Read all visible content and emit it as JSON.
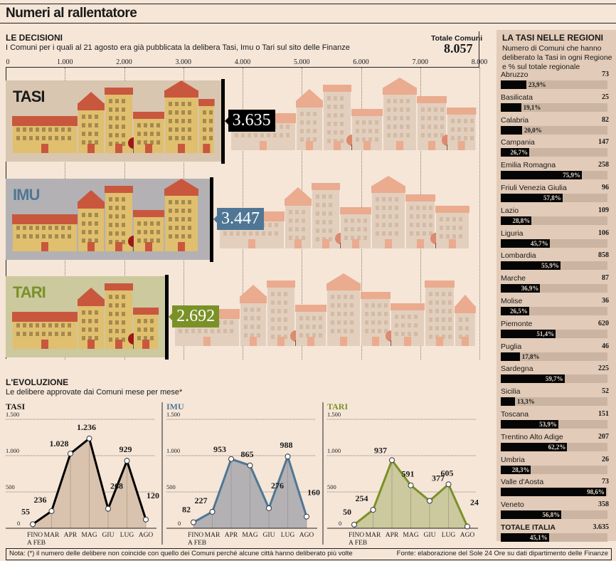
{
  "title": "Numeri al rallentatore",
  "decisions": {
    "heading": "LE DECISIONI",
    "subtitle": "I Comuni per i quali al 21 agosto era già pubblicata la delibera Tasi, Imu o Tari sul sito delle Finanze",
    "total_label": "Totale Comuni",
    "total_value": "8.057"
  },
  "evolution": {
    "heading": "L'EVOLUZIONE",
    "subtitle": "Le delibere approvate dai Comuni mese per mese*"
  },
  "sidebar": {
    "heading": "LA TASI NELLE REGIONI",
    "subtitle": "Numero di Comuni che hanno deliberato la Tasi in ogni Regione e % sul totale regionale",
    "regions": [
      {
        "name": "Abruzzo",
        "count": "73",
        "pct": 23.9,
        "pct_label": "23,9%"
      },
      {
        "name": "Basilicata",
        "count": "25",
        "pct": 19.1,
        "pct_label": "19,1%"
      },
      {
        "name": "Calabria",
        "count": "82",
        "pct": 20.0,
        "pct_label": "20,0%"
      },
      {
        "name": "Campania",
        "count": "147",
        "pct": 26.7,
        "pct_label": "26,7%"
      },
      {
        "name": "Emilia Romagna",
        "count": "258",
        "pct": 75.9,
        "pct_label": "75,9%"
      },
      {
        "name": "Friuli Venezia Giulia",
        "count": "96",
        "pct": 57.8,
        "pct_label": "57,8%"
      },
      {
        "name": "Lazio",
        "count": "109",
        "pct": 28.8,
        "pct_label": "28,8%"
      },
      {
        "name": "Liguria",
        "count": "106",
        "pct": 45.7,
        "pct_label": "45,7%"
      },
      {
        "name": "Lombardia",
        "count": "858",
        "pct": 55.9,
        "pct_label": "55,9%"
      },
      {
        "name": "Marche",
        "count": "87",
        "pct": 36.9,
        "pct_label": "36,9%"
      },
      {
        "name": "Molise",
        "count": "36",
        "pct": 26.5,
        "pct_label": "26,5%"
      },
      {
        "name": "Piemonte",
        "count": "620",
        "pct": 51.4,
        "pct_label": "51,4%"
      },
      {
        "name": "Puglia",
        "count": "46",
        "pct": 17.8,
        "pct_label": "17,8%"
      },
      {
        "name": "Sardegna",
        "count": "225",
        "pct": 59.7,
        "pct_label": "59,7%"
      },
      {
        "name": "Sicilia",
        "count": "52",
        "pct": 13.3,
        "pct_label": "13,3%"
      },
      {
        "name": "Toscana",
        "count": "151",
        "pct": 53.9,
        "pct_label": "53,9%"
      },
      {
        "name": "Trentino Alto Adige",
        "count": "207",
        "pct": 62.2,
        "pct_label": "62,2%"
      },
      {
        "name": "Umbria",
        "count": "26",
        "pct": 28.3,
        "pct_label": "28,3%"
      },
      {
        "name": "Valle d'Aosta",
        "count": "73",
        "pct": 98.6,
        "pct_label": "98,6%"
      },
      {
        "name": "Veneto",
        "count": "358",
        "pct": 56.8,
        "pct_label": "56,8%"
      }
    ],
    "total": {
      "name": "TOTALE ITALIA",
      "count": "3.635",
      "pct": 45.1,
      "pct_label": "45,1%"
    }
  },
  "footer": {
    "note": "Nota: (*) il numero delle delibere non coincide con quello dei Comuni perché alcune città hanno deliberato più volte",
    "source": "Fonte: elaborazione del Sole 24 Ore su dati dipartimento delle Finanze"
  },
  "colors": {
    "background": "#f5e6d8",
    "tasi": "#000000",
    "imu": "#4f7795",
    "tari": "#7a9127",
    "tasi_bg": "#d8c6b0",
    "imu_bg": "#b3b1b4",
    "tari_bg": "#cbc99d"
  },
  "chart_data": [
    {
      "type": "bar",
      "title": "LE DECISIONI",
      "orientation": "horizontal",
      "categories": [
        "TASI",
        "IMU",
        "TARI"
      ],
      "values": [
        3635,
        3447,
        2692
      ],
      "value_labels": [
        "3.635",
        "3.447",
        "2.692"
      ],
      "xlim": [
        0,
        8057
      ],
      "x_ticks": [
        0,
        1000,
        2000,
        3000,
        4000,
        5000,
        6000,
        7000,
        8000
      ],
      "x_tick_labels": [
        "0",
        "1.000",
        "2.000",
        "3.000",
        "4.000",
        "5.000",
        "6.000",
        "7.000",
        "8.000"
      ],
      "grid": true
    },
    {
      "type": "area",
      "title": "TASI",
      "categories": [
        "FINO A FEB",
        "MAR",
        "APR",
        "MAG",
        "GIU",
        "LUG",
        "AGO"
      ],
      "values": [
        55,
        236,
        1028,
        1236,
        268,
        929,
        120
      ],
      "value_labels": [
        "55",
        "236",
        "1.028",
        "1.236",
        "268",
        "929",
        "120"
      ],
      "ylim": [
        0,
        1500
      ],
      "y_ticks": [
        0,
        500,
        1000,
        1500
      ],
      "y_tick_labels": [
        "0",
        "500",
        "1.000",
        "1.500"
      ],
      "grid": true
    },
    {
      "type": "area",
      "title": "IMU",
      "categories": [
        "FINO A FEB",
        "MAR",
        "APR",
        "MAG",
        "GIU",
        "LUG",
        "AGO"
      ],
      "values": [
        82,
        227,
        953,
        865,
        276,
        988,
        160
      ],
      "value_labels": [
        "82",
        "227",
        "953",
        "865",
        "276",
        "988",
        "160"
      ],
      "ylim": [
        0,
        1500
      ],
      "y_ticks": [
        0,
        500,
        1000,
        1500
      ],
      "y_tick_labels": [
        "0",
        "500",
        "1.000",
        "1.500"
      ],
      "grid": true
    },
    {
      "type": "area",
      "title": "TARI",
      "categories": [
        "FINO A FEB",
        "MAR",
        "APR",
        "MAG",
        "GIU",
        "LUG",
        "AGO"
      ],
      "values": [
        50,
        254,
        937,
        591,
        377,
        605,
        24
      ],
      "value_labels": [
        "50",
        "254",
        "937",
        "591",
        "377",
        "605",
        "24"
      ],
      "ylim": [
        0,
        1500
      ],
      "y_ticks": [
        0,
        500,
        1000,
        1500
      ],
      "y_tick_labels": [
        "0",
        "500",
        "1.000",
        "1.500"
      ],
      "grid": true
    }
  ]
}
